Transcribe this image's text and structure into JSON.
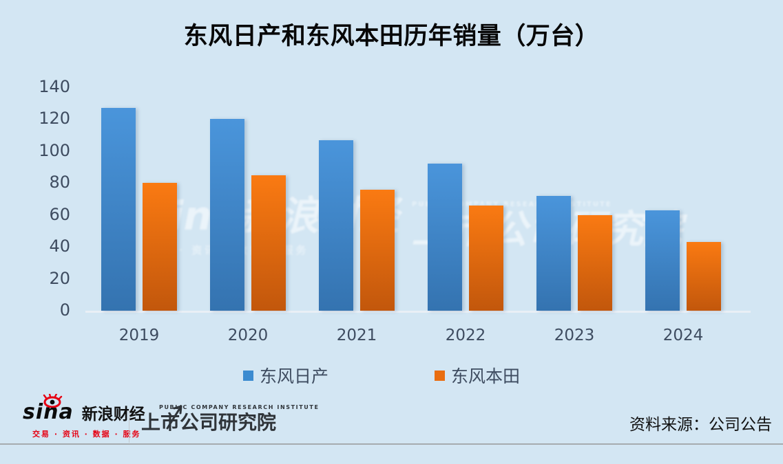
{
  "chart_data": {
    "type": "bar",
    "title": "东风日产和东风本田历年销量（万台）",
    "xlabel": "",
    "ylabel": "",
    "categories": [
      "2019",
      "2020",
      "2021",
      "2022",
      "2023",
      "2024"
    ],
    "series": [
      {
        "name": "东风日产",
        "values": [
          127,
          120,
          107,
          92,
          72,
          63
        ],
        "color_top": "#4A95DB",
        "color_bottom": "#3473B0",
        "legend_color": "#3B8BD0"
      },
      {
        "name": "东风本田",
        "values": [
          80,
          85,
          76,
          66,
          60,
          43
        ],
        "color_top": "#FA7A12",
        "color_bottom": "#C2570C",
        "legend_color": "#E96D10"
      }
    ],
    "ylim": [
      0,
      140
    ],
    "yticks": [
      0,
      20,
      40,
      60,
      80,
      100,
      120,
      140
    ],
    "grid": false,
    "legend_position": "bottom"
  },
  "watermarks": {
    "left_main": "sina新浪财经",
    "left_sub": "交易 · 资讯 · 数据 · 服务",
    "right_en": "PUBLIC COMPANY RESEARCH INSTITUTE",
    "right_main": "上市公司研究院"
  },
  "footer": {
    "sina_word": "sina",
    "sina_cn": "新浪财经",
    "sina_tagline": "交易 · 资讯 · 数据 · 服务",
    "institute_en": "PUBLIC COMPANY RESEARCH INSTITUTE",
    "institute_cn": "上市公司研究院",
    "source_note": "资料来源：公司公告"
  },
  "colors": {
    "background": "#D3E6F3",
    "axis_text": "#3E4C60",
    "title_text": "#070707",
    "baseline": "#E9EFF6",
    "footer_line": "#A6ABAE",
    "sina_red": "#E60012",
    "institute_dark": "#2F3439"
  }
}
